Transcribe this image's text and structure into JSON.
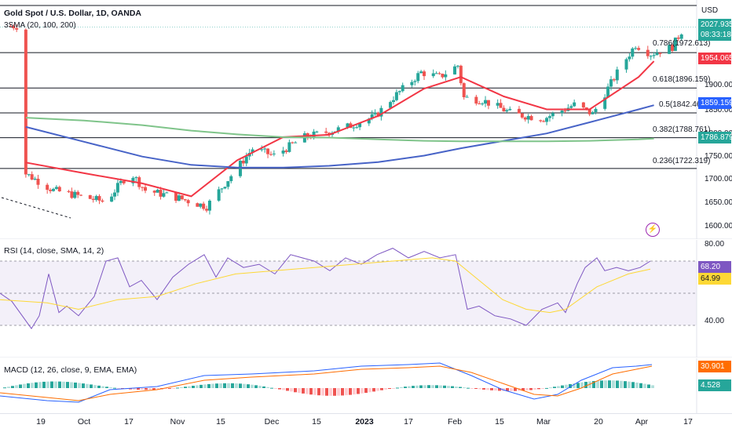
{
  "header": {
    "title": "Gold Spot / U.S. Dollar, 1D, OANDA",
    "indicator": "3SMA (20, 100, 200)",
    "currency": "USD"
  },
  "price_badges": {
    "last_price": "2027.935",
    "countdown": "08:33:18",
    "sma20": "1954.065",
    "sma100": "1859.159",
    "sma200": "1786.879",
    "colors": {
      "last": "#26a69a",
      "sma20": "#f23645",
      "sma100": "#2962ff",
      "sma200": "#089981"
    }
  },
  "price_axis_labels": [
    "1900.000",
    "1850.000",
    "1800.000",
    "1750.000",
    "1700.000",
    "1650.000",
    "1600.000"
  ],
  "fib_levels": [
    {
      "label": "0.786(1972.613)"
    },
    {
      "label": "0.618(1896.159)"
    },
    {
      "label": "0.5(1842.460)"
    },
    {
      "label": "0.382(1788.761)"
    },
    {
      "label": "0.236(1722.319)"
    }
  ],
  "rsi": {
    "title": "RSI (14, close, SMA, 14, 2)",
    "axis_labels": [
      "80.00",
      "40.00"
    ],
    "badge_rsi": "68.20",
    "badge_sma": "64.99"
  },
  "macd": {
    "title": "MACD (12, 26, close, 9, EMA, EMA)",
    "badge_signal": "30.901",
    "badge_hist": "4.528"
  },
  "time_axis": [
    "19",
    "Oct",
    "17",
    "Nov",
    "15",
    "Dec",
    "15",
    "2023",
    "17",
    "Feb",
    "15",
    "Mar",
    "20",
    "Apr",
    "17"
  ],
  "chart_data": {
    "type": "candlestick",
    "symbol": "XAUUSD",
    "timeframe": "1D",
    "y_range": [
      1590,
      2060
    ],
    "series": [
      {
        "name": "SMA 20",
        "color": "#f23645",
        "x": [
          "2022-09-12",
          "2022-10-01",
          "2022-10-20",
          "2022-11-05",
          "2022-11-20",
          "2022-12-05",
          "2022-12-20",
          "2023-01-05",
          "2023-01-20",
          "2023-02-01",
          "2023-02-15",
          "2023-03-01",
          "2023-03-15",
          "2023-03-31",
          "2023-04-05"
        ],
        "values": [
          1735,
          1712,
          1690,
          1662,
          1740,
          1790,
          1795,
          1836,
          1895,
          1920,
          1878,
          1850,
          1850,
          1920,
          1954
        ]
      },
      {
        "name": "SMA 100",
        "color": "#4763c7",
        "x": [
          "2022-09-12",
          "2022-10-01",
          "2022-10-20",
          "2022-11-05",
          "2022-11-20",
          "2022-12-05",
          "2022-12-20",
          "2023-01-05",
          "2023-01-20",
          "2023-02-01",
          "2023-02-15",
          "2023-03-01",
          "2023-03-15",
          "2023-03-31",
          "2023-04-05"
        ],
        "values": [
          1812,
          1780,
          1748,
          1730,
          1724,
          1724,
          1728,
          1736,
          1750,
          1766,
          1782,
          1798,
          1822,
          1850,
          1859
        ]
      },
      {
        "name": "SMA 200",
        "color": "#7fc48a",
        "x": [
          "2022-09-12",
          "2022-10-01",
          "2022-10-20",
          "2022-11-05",
          "2022-11-20",
          "2022-12-05",
          "2022-12-20",
          "2023-01-05",
          "2023-01-20",
          "2023-02-01",
          "2023-02-15",
          "2023-03-01",
          "2023-03-15",
          "2023-03-31",
          "2023-04-05"
        ],
        "values": [
          1832,
          1826,
          1816,
          1804,
          1796,
          1790,
          1789,
          1785,
          1782,
          1781,
          1781,
          1781,
          1782,
          1785,
          1787
        ]
      }
    ]
  }
}
